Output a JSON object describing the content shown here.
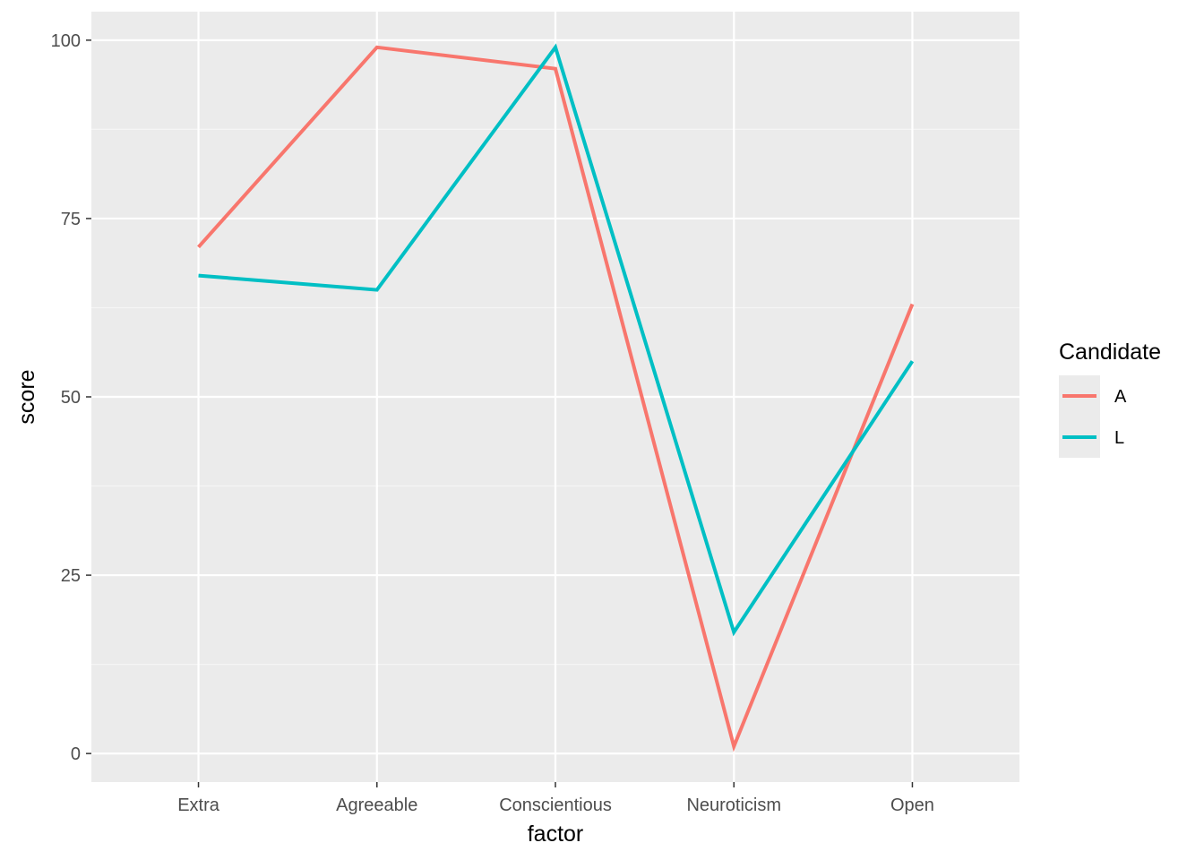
{
  "chart_data": {
    "type": "line",
    "xlabel": "factor",
    "ylabel": "score",
    "categories": [
      "Extra",
      "Agreeable",
      "Conscientious",
      "Neuroticism",
      "Open"
    ],
    "ylim": [
      -4,
      104
    ],
    "yticks": [
      0,
      25,
      50,
      75,
      100
    ],
    "ytick_labels": [
      "0",
      "25",
      "50",
      "75",
      "100"
    ],
    "grid": true,
    "legend": {
      "title": "Candidate",
      "position": "right"
    },
    "series": [
      {
        "name": "A",
        "color": "#F8766D",
        "values": [
          71,
          99,
          96,
          1,
          63
        ]
      },
      {
        "name": "L",
        "color": "#00BFC4",
        "values": [
          67,
          65,
          99,
          17,
          55
        ]
      }
    ]
  },
  "colors": {
    "panel_background": "#EBEBEB",
    "grid_major": "#FFFFFF",
    "grid_minor": "#F5F5F5",
    "tick_mark": "#333333",
    "legend_key_background": "#EBEBEB"
  }
}
